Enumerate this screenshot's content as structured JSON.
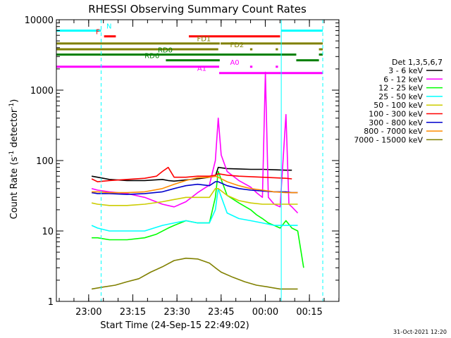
{
  "chart_data": {
    "type": "line",
    "title": "RHESSI Observing Summary Count Rates",
    "xlabel": "Start Time (24-Sep-15 22:49:02)",
    "ylabel": "Count Rate (s",
    "ylabel_exp1": "-1",
    "ylabel_mid": " detector",
    "ylabel_exp2": "-1",
    "ylabel_end": ")",
    "y_scale": "log",
    "ylim": [
      1,
      10000
    ],
    "xlim_minutes": [
      0,
      96
    ],
    "yticks": [
      {
        "value": 1,
        "label": "1"
      },
      {
        "value": 10,
        "label": "10"
      },
      {
        "value": 100,
        "label": "100"
      },
      {
        "value": 1000,
        "label": "1000"
      },
      {
        "value": 10000,
        "label": "10000"
      }
    ],
    "xticks": [
      {
        "minutes": 10.97,
        "label": "23:00"
      },
      {
        "minutes": 25.97,
        "label": "23:15"
      },
      {
        "minutes": 40.97,
        "label": "23:30"
      },
      {
        "minutes": 55.97,
        "label": "23:45"
      },
      {
        "minutes": 70.97,
        "label": "00:00"
      },
      {
        "minutes": 85.97,
        "label": "00:15"
      }
    ],
    "timestamp": "31-Oct-2021 12:20",
    "legend_title": "Det 1,3,5,6,7",
    "series": [
      {
        "name": "3 - 6 keV",
        "color": "#000000",
        "points": [
          [
            12,
            60
          ],
          [
            14,
            58
          ],
          [
            18,
            54
          ],
          [
            24,
            52
          ],
          [
            30,
            52
          ],
          [
            36,
            54
          ],
          [
            38,
            52
          ],
          [
            40,
            51
          ],
          [
            44,
            53
          ],
          [
            48,
            55
          ],
          [
            52,
            58
          ],
          [
            54,
            60
          ],
          [
            55,
            80
          ],
          [
            58,
            77
          ],
          [
            62,
            76
          ],
          [
            66,
            75
          ],
          [
            70,
            75
          ],
          [
            74,
            74
          ],
          [
            78,
            73
          ],
          [
            80,
            73
          ]
        ]
      },
      {
        "name": "6 - 12 keV",
        "color": "#ff00ff",
        "points": [
          [
            12,
            40
          ],
          [
            14,
            38
          ],
          [
            18,
            36
          ],
          [
            24,
            34
          ],
          [
            30,
            30
          ],
          [
            36,
            24
          ],
          [
            40,
            22
          ],
          [
            44,
            26
          ],
          [
            48,
            35
          ],
          [
            52,
            45
          ],
          [
            54,
            100
          ],
          [
            55,
            400
          ],
          [
            56,
            120
          ],
          [
            58,
            70
          ],
          [
            62,
            52
          ],
          [
            66,
            42
          ],
          [
            68,
            35
          ],
          [
            70,
            30
          ],
          [
            71,
            1800
          ],
          [
            72,
            30
          ],
          [
            74,
            24
          ],
          [
            76,
            22
          ],
          [
            78,
            450
          ],
          [
            79,
            24
          ],
          [
            80,
            22
          ],
          [
            82,
            18
          ]
        ]
      },
      {
        "name": "12 - 25 keV",
        "color": "#00ff00",
        "points": [
          [
            12,
            8
          ],
          [
            14,
            8
          ],
          [
            18,
            7.5
          ],
          [
            24,
            7.5
          ],
          [
            30,
            8
          ],
          [
            34,
            9
          ],
          [
            38,
            11
          ],
          [
            40,
            12
          ],
          [
            44,
            14
          ],
          [
            48,
            13
          ],
          [
            52,
            13
          ],
          [
            54,
            30
          ],
          [
            55,
            70
          ],
          [
            58,
            32
          ],
          [
            62,
            25
          ],
          [
            66,
            20
          ],
          [
            68,
            17
          ],
          [
            70,
            15
          ],
          [
            72,
            13
          ],
          [
            74,
            12
          ],
          [
            76,
            11
          ],
          [
            78,
            14
          ],
          [
            80,
            11
          ],
          [
            82,
            10
          ],
          [
            84,
            3
          ]
        ]
      },
      {
        "name": "25 - 50 keV",
        "color": "#00ffff",
        "points": [
          [
            12,
            12
          ],
          [
            14,
            11
          ],
          [
            18,
            10
          ],
          [
            24,
            10
          ],
          [
            30,
            10
          ],
          [
            36,
            12
          ],
          [
            40,
            13
          ],
          [
            44,
            14
          ],
          [
            48,
            13
          ],
          [
            52,
            13
          ],
          [
            54,
            20
          ],
          [
            55,
            40
          ],
          [
            58,
            18
          ],
          [
            62,
            15
          ],
          [
            66,
            14
          ],
          [
            70,
            13
          ],
          [
            74,
            12
          ],
          [
            78,
            12
          ],
          [
            80,
            12
          ],
          [
            82,
            12
          ]
        ]
      },
      {
        "name": "50 - 100 keV",
        "color": "#cccc00",
        "points": [
          [
            12,
            25
          ],
          [
            14,
            24
          ],
          [
            18,
            23
          ],
          [
            24,
            23
          ],
          [
            30,
            24
          ],
          [
            36,
            26
          ],
          [
            40,
            28
          ],
          [
            44,
            30
          ],
          [
            48,
            30
          ],
          [
            52,
            30
          ],
          [
            54,
            40
          ],
          [
            55,
            40
          ],
          [
            58,
            32
          ],
          [
            62,
            27
          ],
          [
            66,
            25
          ],
          [
            70,
            24
          ],
          [
            74,
            24
          ],
          [
            78,
            24
          ],
          [
            80,
            24
          ],
          [
            82,
            24
          ]
        ]
      },
      {
        "name": "100 - 300 keV",
        "color": "#ff0000",
        "points": [
          [
            12,
            55
          ],
          [
            14,
            50
          ],
          [
            18,
            52
          ],
          [
            24,
            54
          ],
          [
            30,
            56
          ],
          [
            34,
            60
          ],
          [
            36,
            70
          ],
          [
            38,
            80
          ],
          [
            40,
            58
          ],
          [
            44,
            58
          ],
          [
            48,
            60
          ],
          [
            52,
            60
          ],
          [
            54,
            62
          ],
          [
            55,
            65
          ],
          [
            58,
            62
          ],
          [
            62,
            60
          ],
          [
            66,
            59
          ],
          [
            70,
            58
          ],
          [
            74,
            57
          ],
          [
            78,
            56
          ],
          [
            80,
            55
          ]
        ]
      },
      {
        "name": "300 - 800 keV",
        "color": "#0000cc",
        "points": [
          [
            12,
            35
          ],
          [
            14,
            34
          ],
          [
            18,
            34
          ],
          [
            24,
            33
          ],
          [
            30,
            34
          ],
          [
            36,
            36
          ],
          [
            40,
            40
          ],
          [
            44,
            44
          ],
          [
            48,
            46
          ],
          [
            52,
            44
          ],
          [
            54,
            50
          ],
          [
            55,
            50
          ],
          [
            58,
            44
          ],
          [
            62,
            40
          ],
          [
            66,
            38
          ],
          [
            70,
            37
          ],
          [
            74,
            36
          ],
          [
            78,
            36
          ],
          [
            80,
            35
          ],
          [
            82,
            35
          ]
        ]
      },
      {
        "name": "800 - 7000 keV",
        "color": "#ff8c00",
        "points": [
          [
            12,
            36
          ],
          [
            14,
            36
          ],
          [
            18,
            35
          ],
          [
            24,
            35
          ],
          [
            30,
            36
          ],
          [
            36,
            40
          ],
          [
            40,
            46
          ],
          [
            44,
            52
          ],
          [
            48,
            57
          ],
          [
            52,
            58
          ],
          [
            54,
            60
          ],
          [
            55,
            58
          ],
          [
            58,
            50
          ],
          [
            62,
            44
          ],
          [
            66,
            40
          ],
          [
            70,
            38
          ],
          [
            74,
            36
          ],
          [
            78,
            35
          ],
          [
            80,
            35
          ],
          [
            82,
            35
          ]
        ]
      },
      {
        "name": "7000 - 15000 keV",
        "color": "#808000",
        "points": [
          [
            12,
            1.5
          ],
          [
            16,
            1.6
          ],
          [
            20,
            1.7
          ],
          [
            24,
            1.9
          ],
          [
            28,
            2.1
          ],
          [
            32,
            2.6
          ],
          [
            36,
            3.1
          ],
          [
            40,
            3.8
          ],
          [
            44,
            4.1
          ],
          [
            48,
            4.0
          ],
          [
            52,
            3.5
          ],
          [
            54,
            3.0
          ],
          [
            56,
            2.6
          ],
          [
            60,
            2.2
          ],
          [
            64,
            1.9
          ],
          [
            68,
            1.7
          ],
          [
            72,
            1.6
          ],
          [
            76,
            1.5
          ],
          [
            80,
            1.5
          ],
          [
            82,
            1.5
          ]
        ]
      }
    ],
    "flag_bars": [
      {
        "label": "N",
        "color": "#00ffff",
        "level": 7000,
        "segments": [
          [
            0,
            15.2
          ],
          [
            76.4,
            90.5
          ]
        ],
        "label_at": 17,
        "label_side": "right"
      },
      {
        "label": "F",
        "color": "#ff0000",
        "level": 5800,
        "segments": [
          [
            16.2,
            20.2
          ],
          [
            45,
            76
          ]
        ],
        "label_at": 14.8,
        "label_side": "left"
      },
      {
        "label": "FD1",
        "color": "#808000",
        "level": 4600,
        "segments": [
          [
            0,
            55.5
          ],
          [
            55.8,
            90.5
          ]
        ],
        "label_at": 52.5,
        "label_side": "left"
      },
      {
        "label": "FD2",
        "color": "#808000",
        "level": 3800,
        "segments": [
          [
            0,
            55
          ],
          [
            65.8,
            66.6
          ],
          [
            74.5,
            75.3
          ],
          [
            89.2,
            90.5
          ]
        ],
        "label_at": 59,
        "label_side": "right"
      },
      {
        "label": "RD0",
        "color": "#008000",
        "level": 3200,
        "segments": [
          [
            0,
            81.5
          ],
          [
            89.2,
            90.5
          ]
        ],
        "label_at": 39.5,
        "label_side": "left"
      },
      {
        "label": "RD6",
        "color": "#008000",
        "level": 2650,
        "segments": [
          [
            37.2,
            55.5
          ],
          [
            81.5,
            89.2
          ]
        ],
        "label_at": 35,
        "label_side": "left"
      },
      {
        "label": "A0",
        "color": "#ff00ff",
        "level": 2150,
        "segments": [
          [
            0,
            55.3
          ],
          [
            65.8,
            66.6
          ],
          [
            74.5,
            75.3
          ]
        ],
        "label_at": 59,
        "label_side": "right"
      },
      {
        "label": "A1",
        "color": "#ff00ff",
        "level": 1750,
        "segments": [
          [
            55.3,
            90.5
          ]
        ],
        "label_at": 51,
        "label_side": "left"
      }
    ],
    "dashed_markers": [
      {
        "minutes": 15.2,
        "color": "#00ffff"
      },
      {
        "minutes": 90.5,
        "color": "#00ffff"
      }
    ],
    "solid_markers": [
      {
        "minutes": 0,
        "color": "#00ffff"
      },
      {
        "minutes": 76.4,
        "color": "#00ffff"
      }
    ]
  }
}
